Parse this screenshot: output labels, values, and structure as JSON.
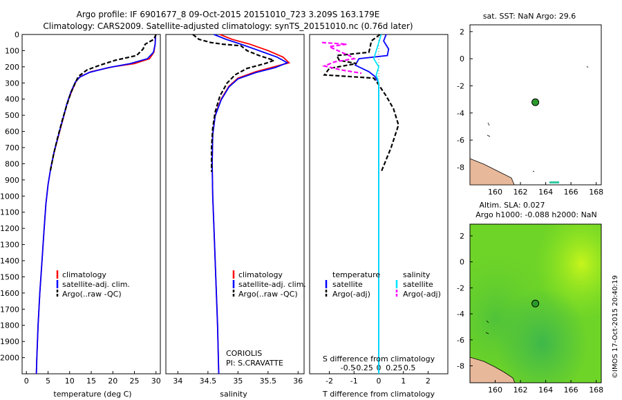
{
  "header": {
    "line1": "Argo profile: IF 6901677_8 09-Oct-2015 20151010_723 3.209S 163.179E",
    "line2": "Climatology: CARS2009. Satellite-adjusted climatology: synTS_20151010.nc (0.76d later)"
  },
  "colors": {
    "climatology": "#ff0000",
    "satellite": "#0000ff",
    "argo": "#000000",
    "sal_sat": "#00e5ff",
    "sal_argo": "#ff00ff",
    "marker": "#2a9a2a",
    "land": "#e8b89a"
  },
  "chart_data": [
    {
      "type": "line",
      "id": "temperature",
      "xlabel": "temperature (deg C)",
      "xlim": [
        -1,
        31
      ],
      "ylim": [
        0,
        2100
      ],
      "xticks": [
        0,
        5,
        10,
        15,
        20,
        25,
        30
      ],
      "yticks": [
        0,
        100,
        200,
        300,
        400,
        500,
        600,
        700,
        800,
        900,
        1000,
        1100,
        1200,
        1300,
        1400,
        1500,
        1600,
        1700,
        1800,
        1900,
        2000
      ],
      "legend": [
        "climatology",
        "satellite-adj. clim.",
        "Argo(..raw -QC)"
      ],
      "series": [
        {
          "name": "climatology",
          "color": "#ff0000",
          "dash": false,
          "points": [
            [
              29.9,
              0
            ],
            [
              29.8,
              60
            ],
            [
              29.5,
              110
            ],
            [
              28.5,
              150
            ],
            [
              25,
              180
            ],
            [
              20,
              200
            ],
            [
              15,
              230
            ],
            [
              12.5,
              260
            ],
            [
              11.5,
              290
            ],
            [
              10.5,
              350
            ],
            [
              9.5,
              420
            ],
            [
              8.5,
              520
            ],
            [
              7.5,
              620
            ],
            [
              6.5,
              720
            ],
            [
              5.6,
              830
            ],
            [
              5,
              930
            ],
            [
              4.5,
              1050
            ],
            [
              4.1,
              1200
            ],
            [
              3.6,
              1400
            ],
            [
              3.1,
              1600
            ],
            [
              2.7,
              1800
            ],
            [
              2.4,
              2000
            ],
            [
              2.3,
              2100
            ]
          ]
        },
        {
          "name": "satellite-adj. clim.",
          "color": "#0000ff",
          "dash": false,
          "points": [
            [
              29.9,
              0
            ],
            [
              29.8,
              60
            ],
            [
              29.4,
              110
            ],
            [
              28,
              150
            ],
            [
              24,
              180
            ],
            [
              19,
              205
            ],
            [
              14.5,
              235
            ],
            [
              12.3,
              265
            ],
            [
              11.3,
              295
            ],
            [
              10.3,
              355
            ],
            [
              9.4,
              425
            ],
            [
              8.4,
              525
            ],
            [
              7.4,
              625
            ],
            [
              6.4,
              725
            ],
            [
              5.6,
              830
            ],
            [
              5,
              930
            ],
            [
              4.5,
              1050
            ],
            [
              4.1,
              1200
            ],
            [
              3.6,
              1400
            ],
            [
              3.1,
              1600
            ],
            [
              2.7,
              1800
            ],
            [
              2.4,
              2000
            ],
            [
              2.3,
              2100
            ]
          ]
        },
        {
          "name": "Argo(..raw -QC)",
          "color": "#000000",
          "dash": true,
          "points": [
            [
              30,
              0
            ],
            [
              29.5,
              30
            ],
            [
              27.5,
              60
            ],
            [
              27,
              90
            ],
            [
              25.5,
              130
            ],
            [
              20.5,
              160
            ],
            [
              17,
              190
            ],
            [
              14,
              220
            ],
            [
              12,
              260
            ],
            [
              11.3,
              300
            ],
            [
              10.3,
              360
            ],
            [
              9.3,
              440
            ],
            [
              8.2,
              540
            ],
            [
              7.2,
              640
            ],
            [
              6.3,
              740
            ],
            [
              5.5,
              850
            ]
          ]
        }
      ]
    },
    {
      "type": "line",
      "id": "salinity",
      "xlabel": "salinity",
      "xlim": [
        33.8,
        36.1
      ],
      "ylim": [
        0,
        2100
      ],
      "xticks": [
        34,
        34.5,
        35,
        35.5,
        36
      ],
      "legend": [
        "climatology",
        "satellite-adj. clim.",
        "Argo(..raw -QC)"
      ],
      "annotation": [
        "CORIOLIS",
        "PI: S.CRAVATTE"
      ],
      "series": [
        {
          "name": "climatology",
          "color": "#ff0000",
          "dash": false,
          "points": [
            [
              34.7,
              0
            ],
            [
              34.9,
              30
            ],
            [
              35.2,
              60
            ],
            [
              35.5,
              100
            ],
            [
              35.75,
              140
            ],
            [
              35.85,
              175
            ],
            [
              35.6,
              200
            ],
            [
              35.3,
              230
            ],
            [
              35,
              270
            ],
            [
              34.85,
              320
            ],
            [
              34.72,
              400
            ],
            [
              34.62,
              500
            ],
            [
              34.58,
              620
            ],
            [
              34.57,
              800
            ],
            [
              34.58,
              1000
            ],
            [
              34.6,
              1200
            ],
            [
              34.63,
              1500
            ],
            [
              34.66,
              1800
            ],
            [
              34.68,
              2100
            ]
          ]
        },
        {
          "name": "satellite-adj. clim.",
          "color": "#0000ff",
          "dash": false,
          "points": [
            [
              34.6,
              0
            ],
            [
              34.8,
              30
            ],
            [
              35.05,
              60
            ],
            [
              35.35,
              100
            ],
            [
              35.65,
              140
            ],
            [
              35.82,
              175
            ],
            [
              35.62,
              205
            ],
            [
              35.3,
              235
            ],
            [
              35,
              275
            ],
            [
              34.85,
              325
            ],
            [
              34.72,
              405
            ],
            [
              34.62,
              505
            ],
            [
              34.58,
              620
            ],
            [
              34.57,
              800
            ],
            [
              34.58,
              1000
            ],
            [
              34.6,
              1200
            ],
            [
              34.63,
              1500
            ],
            [
              34.66,
              1800
            ],
            [
              34.68,
              2100
            ]
          ]
        },
        {
          "name": "Argo(..raw -QC)",
          "color": "#000000",
          "dash": true,
          "points": [
            [
              34.25,
              0
            ],
            [
              34.35,
              30
            ],
            [
              34.55,
              50
            ],
            [
              34.75,
              60
            ],
            [
              35.05,
              70
            ],
            [
              35.15,
              100
            ],
            [
              35.35,
              130
            ],
            [
              35.6,
              160
            ],
            [
              35.45,
              180
            ],
            [
              35.15,
              210
            ],
            [
              34.95,
              250
            ],
            [
              34.82,
              300
            ],
            [
              34.7,
              380
            ],
            [
              34.62,
              480
            ],
            [
              34.58,
              580
            ],
            [
              34.56,
              700
            ],
            [
              34.56,
              850
            ]
          ]
        }
      ]
    },
    {
      "type": "line",
      "id": "difference",
      "xlabel": "T difference from climatology",
      "xlabel2": "S difference from climatology",
      "xlim": [
        -2.8,
        2.8
      ],
      "ylim": [
        0,
        2100
      ],
      "xticks": [
        -2,
        -1,
        0,
        1,
        2
      ],
      "xticks_top": [
        -0.5,
        -0.25,
        0,
        0.25,
        0.5
      ],
      "legend_t": {
        "title": "temperature",
        "entries": [
          "satellite",
          "Argo(-adj)"
        ]
      },
      "legend_s": {
        "title": "salinity",
        "entries": [
          "satellite",
          "Argo(-adj)"
        ]
      },
      "series": [
        {
          "name": "T satellite",
          "color": "#0000ff",
          "dash": false,
          "points": [
            [
              0.3,
              0
            ],
            [
              0.2,
              40
            ],
            [
              0.4,
              90
            ],
            [
              0.35,
              130
            ],
            [
              -0.8,
              150
            ],
            [
              -0.95,
              190
            ],
            [
              -0.4,
              230
            ],
            [
              -0.15,
              260
            ],
            [
              0,
              300
            ],
            [
              0,
              500
            ],
            [
              0,
              1000
            ],
            [
              0,
              1500
            ],
            [
              0,
              2100
            ]
          ]
        },
        {
          "name": "T Argo(-adj)",
          "color": "#000000",
          "dash": true,
          "points": [
            [
              0.05,
              0
            ],
            [
              -0.3,
              40
            ],
            [
              -0.35,
              80
            ],
            [
              -0.4,
              110
            ],
            [
              -1.7,
              130
            ],
            [
              -1.6,
              160
            ],
            [
              -0.9,
              180
            ],
            [
              -2,
              210
            ],
            [
              -2.2,
              250
            ],
            [
              -0.2,
              270
            ],
            [
              -0.05,
              300
            ],
            [
              0.3,
              380
            ],
            [
              0.6,
              460
            ],
            [
              0.8,
              560
            ],
            [
              0.5,
              700
            ],
            [
              0.1,
              850
            ]
          ]
        },
        {
          "name": "S satellite",
          "color": "#00e5ff",
          "dash": false,
          "points": [
            [
              0.1,
              0
            ],
            [
              -0.2,
              150
            ],
            [
              0,
              200
            ],
            [
              -0.1,
              250
            ],
            [
              0,
              300
            ],
            [
              0,
              2100
            ]
          ]
        },
        {
          "name": "S Argo(-adj)",
          "color": "#ff00ff",
          "dash": true,
          "points": [
            [
              -2.3,
              50
            ],
            [
              -1.3,
              60
            ],
            [
              -2,
              75
            ],
            [
              -1.8,
              90
            ],
            [
              -1.2,
              130
            ],
            [
              -1,
              150
            ],
            [
              -1.8,
              170
            ],
            [
              -2.2,
              195
            ],
            [
              -1.5,
              220
            ],
            [
              -0.7,
              240
            ]
          ]
        }
      ]
    },
    {
      "type": "scatter",
      "id": "sst_map",
      "title": "sat. SST: NaN Argo: 29.6",
      "xlim": [
        158,
        168.4
      ],
      "ylim": [
        -9.3,
        2.5
      ],
      "xticks": [
        160,
        162,
        164,
        166,
        168
      ],
      "yticks": [
        2,
        0,
        -2,
        -4,
        -6,
        -8
      ],
      "argo_position": [
        163.179,
        -3.209
      ]
    },
    {
      "type": "heatmap",
      "id": "sla_map",
      "title1": "Altim. SLA: 0.027",
      "title2": "Argo h1000: -0.088 h2000: NaN",
      "xlim": [
        158,
        168.4
      ],
      "ylim": [
        -9.3,
        2.9
      ],
      "xticks": [
        160,
        162,
        164,
        166,
        168
      ],
      "yticks": [
        2,
        0,
        -2,
        -4,
        -6,
        -8
      ],
      "argo_position": [
        163.179,
        -3.209
      ]
    }
  ],
  "credit": "©IMOS 17-Oct-2015 20:40:19"
}
